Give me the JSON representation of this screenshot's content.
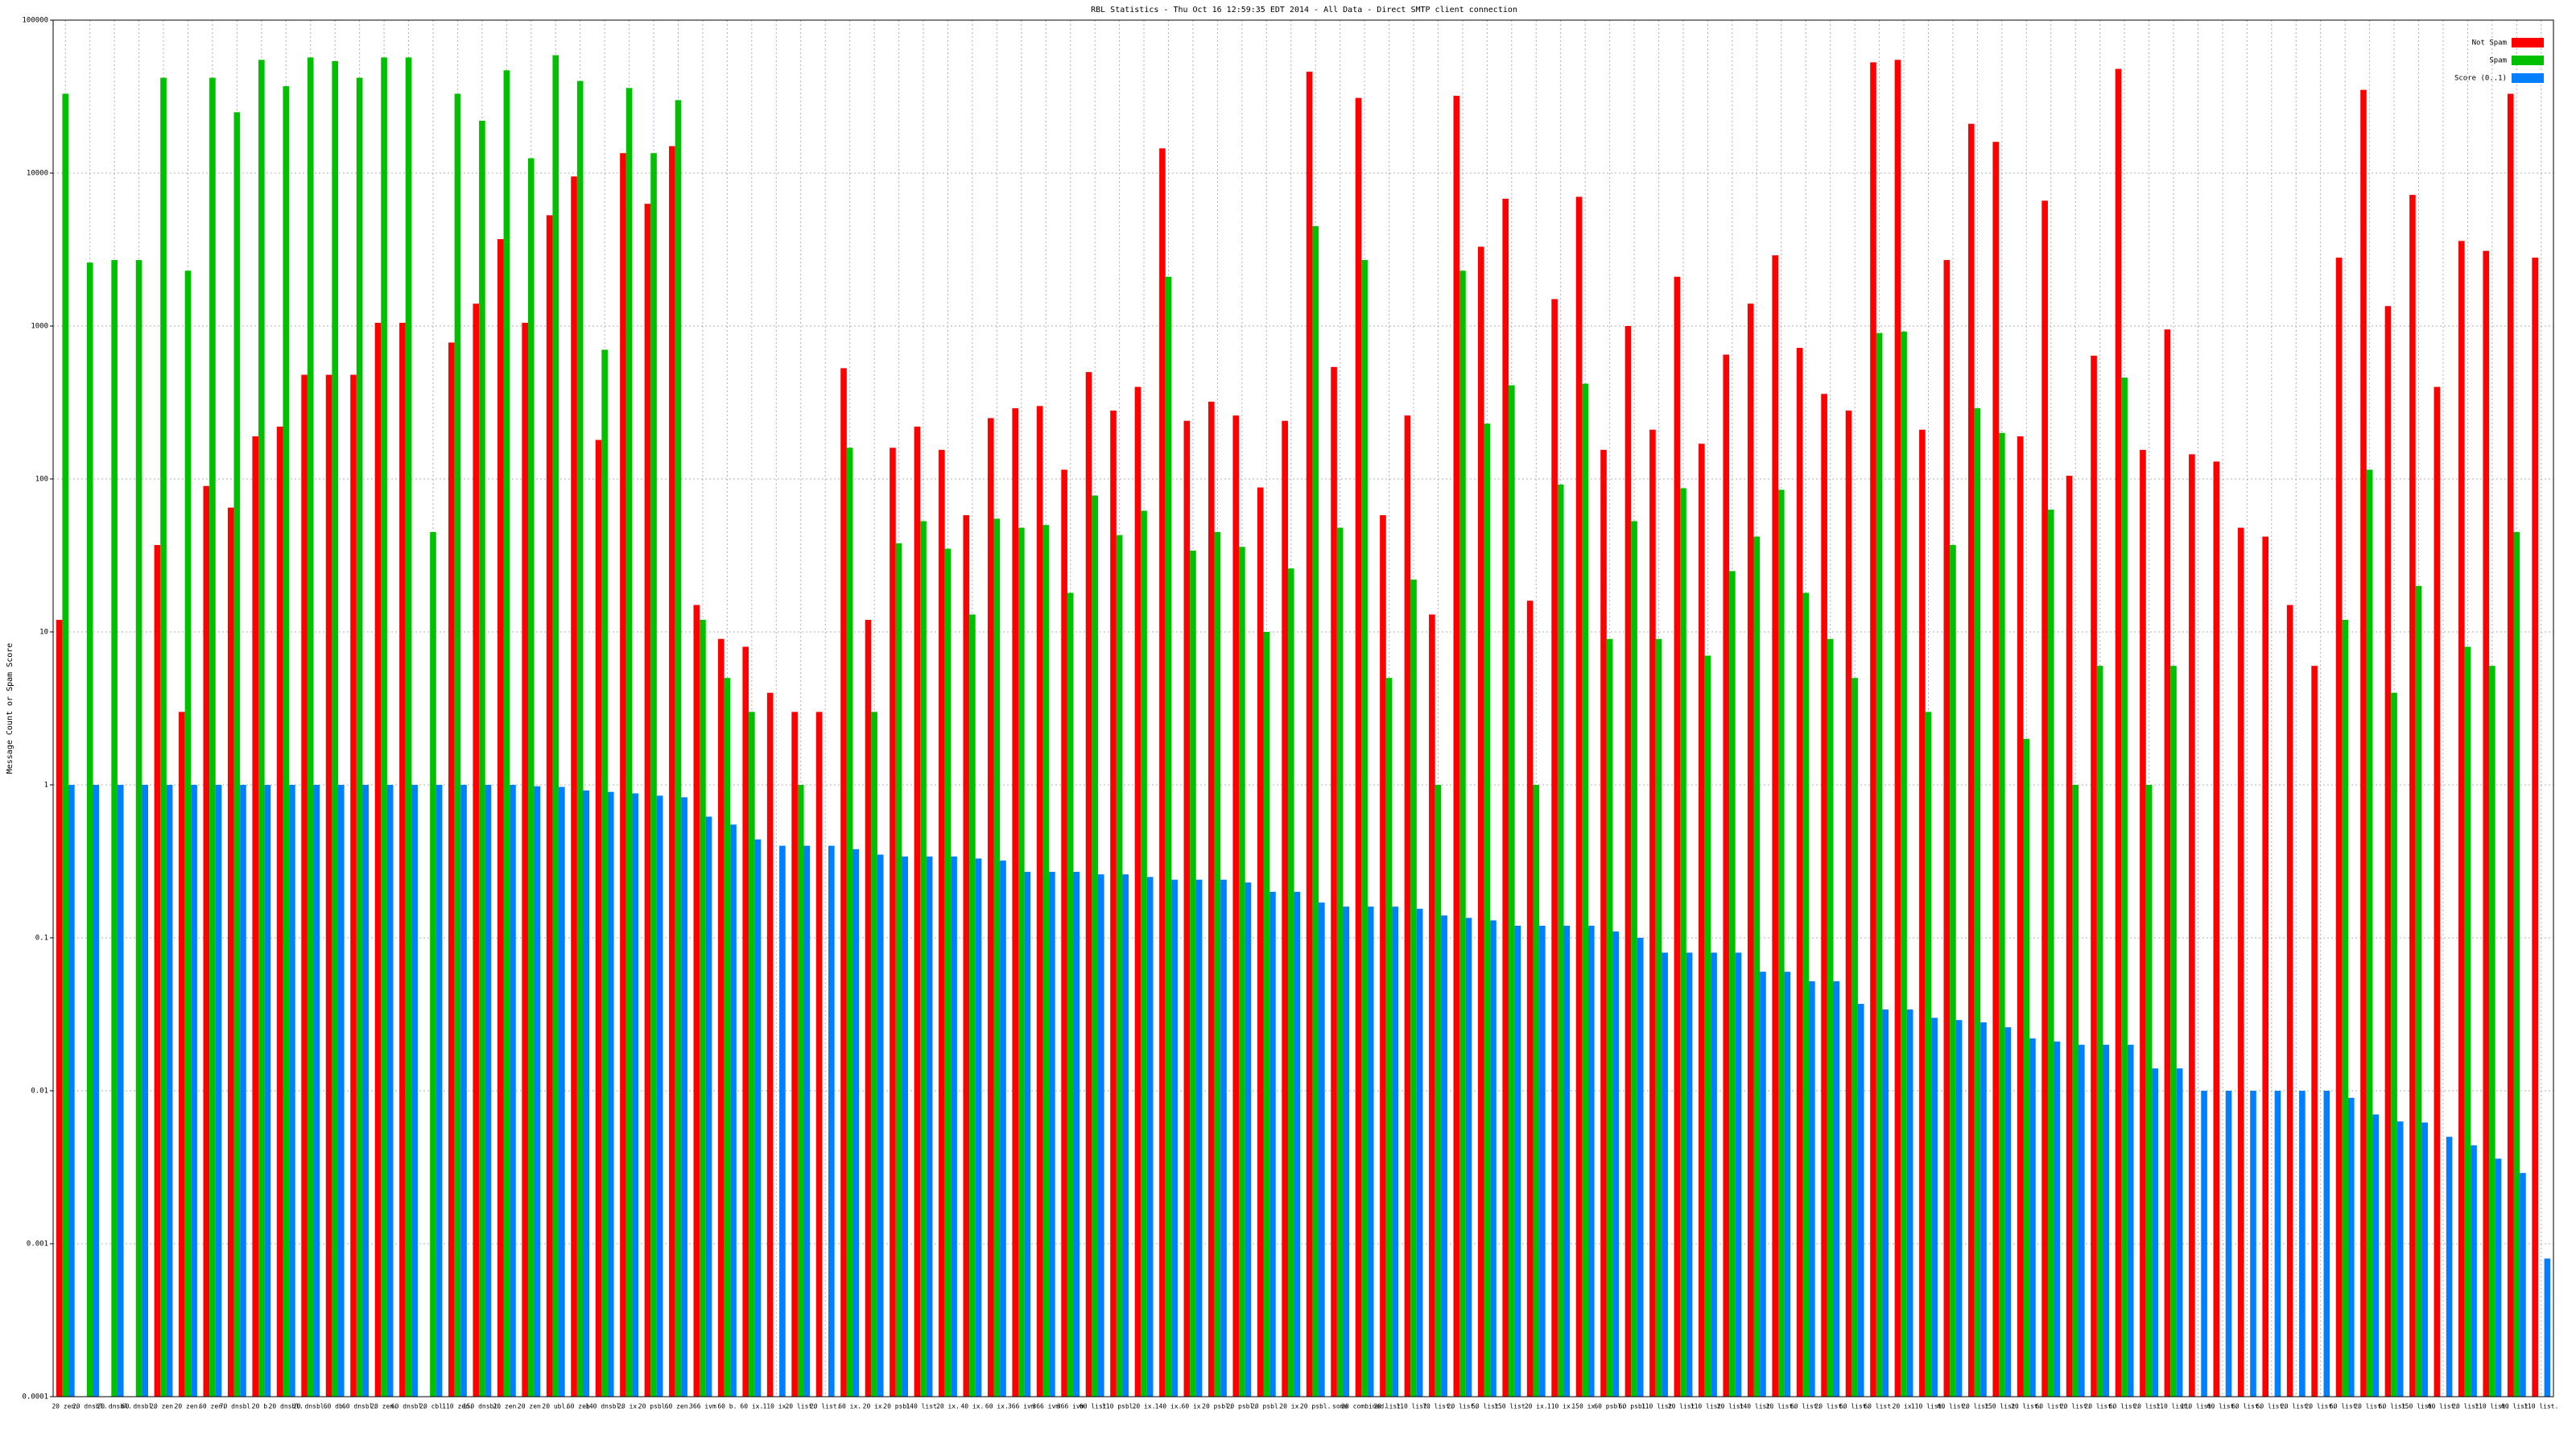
{
  "chart_data": {
    "type": "bar",
    "title": "RBL Statistics - Thu Oct 16 12:59:35 EDT 2014 - All Data - Direct SMTP client connection",
    "y_label": "Message Count or Spam Score",
    "log_scale": true,
    "grid": true,
    "legend_position": "top-right",
    "ylim": [
      0.0001,
      100000
    ],
    "yticks": [
      0.0001,
      0.001,
      0.01,
      0.1,
      1,
      10,
      100,
      1000,
      10000,
      100000
    ],
    "categories": [
      "20 zen.",
      "20 dnsbl.",
      "20 dnsbl.",
      "60 dnsbl.",
      "20 zen.",
      "20 zen.",
      "60 zen.",
      "70 dnsbl.",
      "20 b.",
      "20 dnsbl.",
      "20 dnsbl.",
      "60 db.",
      "60 dnsbl.",
      "20 zen.",
      "60 dnsbl.",
      "20 cbl.",
      "110 zen.",
      "150 dnsbl.",
      "20 zen.",
      "20 zen.",
      "20 ubl.",
      "60 zen.",
      "140 dnsbl.",
      "20 ix.",
      "20 psbl.",
      "60 zen.",
      "366 ivm",
      "60 b.",
      "60 ix.",
      "110 ix.",
      "20 list.",
      "20 list.",
      "60 ix.",
      "20 ix.",
      "20 psbl.",
      "140 list.",
      "20 ix.",
      "40 ix.",
      "60 ix.",
      "366 ivm",
      "366 ivm",
      "366 ivm",
      "60 list.",
      "110 psbl.",
      "20 ix.",
      "140 ix.",
      "60 ix.",
      "20 psbl.",
      "20 psbl.",
      "20 psbl.",
      "20 ix.",
      "20 psbl.",
      "some",
      "20 combined.",
      "20 list.",
      "110 list.",
      "70 list.",
      "20 list.",
      "50 list.",
      "150 list.",
      "20 ix.",
      "110 ix.",
      "150 ix.",
      "60 psbl.",
      "60 psbl.",
      "110 list.",
      "20 list.",
      "110 list.",
      "20 list.",
      "140 list.",
      "20 list.",
      "60 list.",
      "20 list.",
      "60 list.",
      "60 list.",
      "20 ix.",
      "110 list.",
      "60 list.",
      "20 list.",
      "150 list.",
      "20 list.",
      "60 list.",
      "20 list.",
      "20 list.",
      "60 list.",
      "20 list.",
      "110 list.",
      "110 list.",
      "60 list.",
      "60 list.",
      "60 list.",
      "20 list.",
      "20 list.",
      "60 list.",
      "20 list.",
      "60 list.",
      "150 list.",
      "60 list.",
      "20 list.",
      "110 list.",
      "60 list.",
      "110 list."
    ],
    "series": [
      {
        "name": "Not Spam",
        "color": "#ff0000",
        "values": [
          12,
          null,
          null,
          null,
          37,
          3,
          90,
          65,
          190,
          220,
          480,
          480,
          480,
          1050,
          1050,
          null,
          780,
          1400,
          3700,
          1050,
          5300,
          9500,
          180,
          13500,
          6300,
          15000,
          15,
          9,
          8,
          4,
          3,
          3,
          530,
          12,
          160,
          220,
          155,
          58,
          250,
          290,
          300,
          115,
          500,
          280,
          400,
          14500,
          240,
          320,
          260,
          88,
          240,
          46000,
          540,
          31000,
          58,
          260,
          13,
          32000,
          3300,
          6800,
          16,
          1500,
          7000,
          155,
          1000,
          210,
          2100,
          170,
          650,
          1400,
          2900,
          720,
          360,
          280,
          53000,
          55000,
          210,
          2700,
          21000,
          16000,
          190,
          6600,
          105,
          640,
          48000,
          155,
          950,
          145,
          130,
          48,
          42,
          15,
          6,
          2800,
          35000,
          1350,
          7200,
          400,
          3600,
          3100,
          33000,
          2800
        ]
      },
      {
        "name": "Spam",
        "color": "#00c000",
        "values": [
          33000,
          2600,
          2700,
          2700,
          42000,
          2300,
          42000,
          25000,
          55000,
          37000,
          57000,
          54000,
          42000,
          57000,
          57000,
          45,
          33000,
          22000,
          47000,
          12500,
          59000,
          40000,
          700,
          36000,
          13500,
          30000,
          12,
          5,
          3,
          null,
          1,
          null,
          160,
          3,
          38,
          53,
          35,
          13,
          55,
          48,
          50,
          18,
          78,
          43,
          62,
          2100,
          34,
          45,
          36,
          10,
          26,
          4500,
          48,
          2700,
          5,
          22,
          1,
          2300,
          230,
          410,
          1,
          92,
          420,
          9,
          53,
          9,
          87,
          7,
          25,
          42,
          85,
          18,
          9,
          5,
          900,
          920,
          3,
          37,
          290,
          200,
          2,
          63,
          1,
          6,
          460,
          1,
          6,
          null,
          null,
          null,
          null,
          null,
          null,
          12,
          115,
          4,
          20,
          null,
          8,
          6,
          45,
          null
        ]
      },
      {
        "name": "Score (0..1)",
        "color": "#0080ff",
        "values": [
          1,
          1,
          1,
          1,
          1,
          1,
          1,
          1,
          1,
          1,
          1,
          1,
          1,
          1,
          1,
          1,
          1,
          1,
          1,
          0.98,
          0.97,
          0.92,
          0.9,
          0.88,
          0.85,
          0.83,
          0.62,
          0.55,
          0.44,
          0.4,
          0.4,
          0.4,
          0.38,
          0.35,
          0.34,
          0.34,
          0.34,
          0.33,
          0.32,
          0.27,
          0.27,
          0.27,
          0.26,
          0.26,
          0.25,
          0.24,
          0.24,
          0.24,
          0.23,
          0.2,
          0.2,
          0.17,
          0.16,
          0.16,
          0.16,
          0.155,
          0.14,
          0.135,
          0.13,
          0.12,
          0.12,
          0.12,
          0.12,
          0.11,
          0.1,
          0.08,
          0.08,
          0.08,
          0.08,
          0.06,
          0.06,
          0.052,
          0.052,
          0.037,
          0.034,
          0.034,
          0.03,
          0.029,
          0.028,
          0.026,
          0.022,
          0.021,
          0.02,
          0.02,
          0.02,
          0.014,
          0.014,
          0.01,
          0.01,
          0.01,
          0.01,
          0.01,
          0.01,
          0.009,
          0.007,
          0.0063,
          0.0062,
          0.005,
          0.0044,
          0.0036,
          0.0029,
          0.0008
        ]
      }
    ]
  }
}
